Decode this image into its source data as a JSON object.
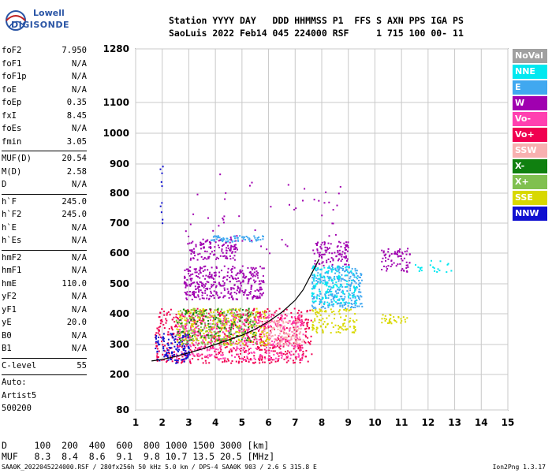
{
  "logo": {
    "line1": "Lowell",
    "line2": "DIGISONDE"
  },
  "header": {
    "line1": "Station YYYY DAY   DDD HHMMSS P1  FFS S AXN PPS IGA PS",
    "line2": "SaoLuis 2022 Feb14 045 224000 RSF     1 715 100 00- 11"
  },
  "params": [
    {
      "label": "foF2",
      "value": "7.950"
    },
    {
      "label": "foF1",
      "value": "N/A"
    },
    {
      "label": "foF1p",
      "value": "N/A"
    },
    {
      "label": "foE",
      "value": "N/A"
    },
    {
      "label": "foEp",
      "value": "0.35"
    },
    {
      "label": "fxI",
      "value": "8.45"
    },
    {
      "label": "foEs",
      "value": "N/A"
    },
    {
      "label": "fmin",
      "value": "3.05"
    },
    {
      "sep": true
    },
    {
      "label": "MUF(D)",
      "value": "20.54"
    },
    {
      "label": "M(D)",
      "value": "2.58"
    },
    {
      "label": "D",
      "value": "N/A"
    },
    {
      "sep": true
    },
    {
      "label": "h`F",
      "value": "245.0"
    },
    {
      "label": "h`F2",
      "value": "245.0"
    },
    {
      "label": "h`E",
      "value": "N/A"
    },
    {
      "label": "h`Es",
      "value": "N/A"
    },
    {
      "sep": true
    },
    {
      "label": "hmF2",
      "value": "N/A"
    },
    {
      "label": "hmF1",
      "value": "N/A"
    },
    {
      "label": "hmE",
      "value": "110.0"
    },
    {
      "label": "yF2",
      "value": "N/A"
    },
    {
      "label": "yF1",
      "value": "N/A"
    },
    {
      "label": "yE",
      "value": "20.0"
    },
    {
      "label": "B0",
      "value": "N/A"
    },
    {
      "label": "B1",
      "value": "N/A"
    },
    {
      "sep": true
    },
    {
      "label": "C-level",
      "value": "55"
    },
    {
      "sep": true
    },
    {
      "text": "Auto:"
    },
    {
      "text": "Artist5"
    },
    {
      "text": "500200"
    }
  ],
  "muf_table": {
    "row1": "D     100  200  400  600  800 1000 1500 3000 [km]",
    "row2": "MUF   8.3  8.4  8.6  9.1  9.8 10.7 13.5 20.5 [MHz]"
  },
  "footer": {
    "left": "SAA0K_2022045224000.RSF / 280fx256h 50 kHz 5.0 km / DPS-4 SAA0K 903 / 2.6 S 315.8 E",
    "right": "Ion2Png 1.3.17"
  },
  "legend": [
    {
      "label": "NoVal",
      "color": "#a0a0a0"
    },
    {
      "label": "NNE",
      "color": "#00e8f0"
    },
    {
      "label": "E",
      "color": "#40a8f0"
    },
    {
      "label": "W",
      "color": "#a000b0"
    },
    {
      "label": "Vo-",
      "color": "#ff40b0"
    },
    {
      "label": "Vo+",
      "color": "#f00050"
    },
    {
      "label": "SSW",
      "color": "#f8b0b0"
    },
    {
      "label": "X-",
      "color": "#108010"
    },
    {
      "label": "X+",
      "color": "#80c050"
    },
    {
      "label": "SSE",
      "color": "#d8d800"
    },
    {
      "label": "NNW",
      "color": "#1010d0"
    }
  ],
  "chart_data": {
    "type": "scatter",
    "title": "",
    "xlabel": "",
    "ylabel": "",
    "x_ticks": [
      "1",
      "2",
      "3",
      "4",
      "5",
      "6",
      "7",
      "8",
      "9",
      "10",
      "11",
      "12",
      "13",
      "14",
      "15"
    ],
    "y_ticks": [
      "80",
      "200",
      "300",
      "400",
      "500",
      "600",
      "700",
      "800",
      "900",
      "1000",
      "1100",
      "1280"
    ],
    "xlim": [
      1,
      15
    ],
    "ylim": [
      80,
      1280
    ],
    "grid": true,
    "legend_position": "right",
    "trace": {
      "name": "",
      "x": [
        1.6,
        2.0,
        2.5,
        3.0,
        3.5,
        4.0,
        4.5,
        5.0,
        5.5,
        6.0,
        6.5,
        7.0,
        7.3,
        7.6,
        7.9
      ],
      "y": [
        245,
        250,
        260,
        272,
        285,
        300,
        315,
        330,
        350,
        375,
        405,
        445,
        480,
        530,
        580
      ]
    },
    "clusters": [
      {
        "series": "Vo+",
        "x": [
          1.7,
          7.6
        ],
        "y": [
          240,
          420
        ],
        "n": 700
      },
      {
        "series": "Vo-",
        "x": [
          2.5,
          7.3
        ],
        "y": [
          250,
          400
        ],
        "n": 500
      },
      {
        "series": "NNW",
        "x": [
          1.7,
          3.0
        ],
        "y": [
          240,
          340
        ],
        "n": 120
      },
      {
        "series": "SSE",
        "x": [
          2.5,
          6.0
        ],
        "y": [
          300,
          420
        ],
        "n": 260
      },
      {
        "series": "X+",
        "x": [
          2.5,
          5.5
        ],
        "y": [
          300,
          420
        ],
        "n": 180
      },
      {
        "series": "X-",
        "x": [
          2.5,
          5.5
        ],
        "y": [
          310,
          420
        ],
        "n": 100
      },
      {
        "series": "W",
        "x": [
          2.8,
          5.8
        ],
        "y": [
          450,
          560
        ],
        "n": 360
      },
      {
        "series": "W",
        "x": [
          3.0,
          4.8
        ],
        "y": [
          580,
          650
        ],
        "n": 120
      },
      {
        "series": "E",
        "x": [
          3.8,
          5.8
        ],
        "y": [
          640,
          660
        ],
        "n": 70
      },
      {
        "series": "E",
        "x": [
          7.6,
          9.5
        ],
        "y": [
          420,
          560
        ],
        "n": 300
      },
      {
        "series": "NNE",
        "x": [
          7.6,
          9.3
        ],
        "y": [
          430,
          560
        ],
        "n": 140
      },
      {
        "series": "W",
        "x": [
          7.6,
          9.0
        ],
        "y": [
          560,
          640
        ],
        "n": 100
      },
      {
        "series": "SSE",
        "x": [
          7.6,
          9.3
        ],
        "y": [
          340,
          420
        ],
        "n": 110
      },
      {
        "series": "SSW",
        "x": [
          5.8,
          7.3
        ],
        "y": [
          300,
          380
        ],
        "n": 110
      },
      {
        "series": "W",
        "x": [
          10.2,
          11.3
        ],
        "y": [
          540,
          620
        ],
        "n": 70
      },
      {
        "series": "SSE",
        "x": [
          10.2,
          11.2
        ],
        "y": [
          370,
          400
        ],
        "n": 30
      },
      {
        "series": "NNE",
        "x": [
          11.5,
          13.4
        ],
        "y": [
          540,
          580
        ],
        "n": 20
      },
      {
        "series": "W",
        "x": [
          2.8,
          9.0
        ],
        "y": [
          600,
          870
        ],
        "n": 55
      },
      {
        "series": "NNW",
        "x": [
          1.9,
          2.0
        ],
        "y": [
          700,
          900
        ],
        "n": 10
      }
    ]
  }
}
